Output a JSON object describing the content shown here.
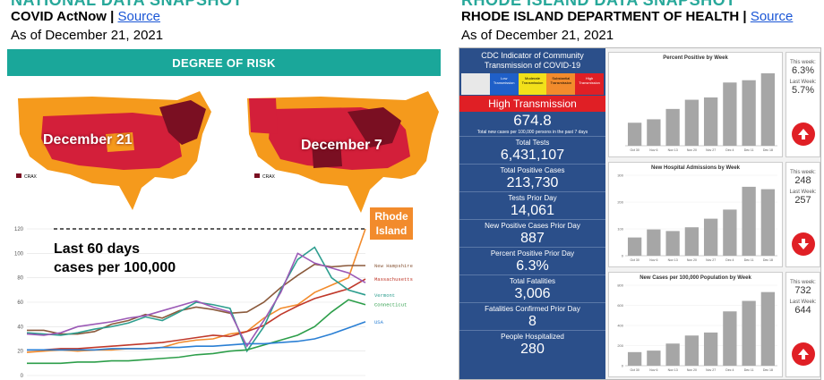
{
  "left": {
    "title": "NATIONAL DATA SNAPSHOT",
    "source_org": "COVID ActNow | ",
    "source_link": "Source",
    "as_of": "As of December 21, 2021",
    "risk_header": "DEGREE OF RISK",
    "map1_label": "December 21",
    "map2_label": "December 7",
    "legend_swatch_label": "CRAX",
    "chart_title_line1": "Last 60 days",
    "chart_title_line2": "cases per 100,000",
    "ri_badge": [
      "Rhode",
      "Island"
    ]
  },
  "right": {
    "title": "RHODE ISLAND DATA SNAPSHOT",
    "source_org": "RHODE ISLAND DEPARTMENT OF HEALTH | ",
    "source_link": "Source",
    "as_of": "As of December 21, 2021",
    "cdc_header_line1": "CDC Indicator of Community",
    "cdc_header_line2": "Transmission of COVID-19",
    "legend": [
      {
        "label": "Low Transmission",
        "color": "#1f5fc8"
      },
      {
        "label": "Moderate Transmission",
        "color": "#f2e01a"
      },
      {
        "label": "Substantial Transmission",
        "color": "#f28b2c"
      },
      {
        "label": "High Transmission",
        "color": "#e01f25"
      }
    ],
    "transmission_level": "High Transmission",
    "cases_per_100k": "674.8",
    "cases_note": "Total new cases per 100,000 persons in the past 7 days",
    "stats": [
      {
        "label": "Total Tests",
        "value": "6,431,107"
      },
      {
        "label": "Total Positive Cases",
        "value": "213,730"
      },
      {
        "label": "Tests Prior Day",
        "value": "14,061"
      },
      {
        "label": "New Positive Cases Prior Day",
        "value": "887"
      },
      {
        "label": "Percent Positive Prior Day",
        "value": "6.3%"
      },
      {
        "label": "Total Fatalities",
        "value": "3,006"
      },
      {
        "label": "Fatalities Confirmed Prior Day",
        "value": "8"
      },
      {
        "label": "People Hospitalized",
        "value": "280"
      }
    ],
    "side_this_week": "This week:",
    "side_last_week": "Last Week:",
    "panels": [
      {
        "this_week": "6.3%",
        "last_week": "5.7%",
        "arrow": "up"
      },
      {
        "this_week": "248",
        "last_week": "257",
        "arrow": "down"
      },
      {
        "this_week": "732",
        "last_week": "644",
        "arrow": "up"
      }
    ]
  },
  "chart_data": [
    {
      "type": "line",
      "title": "Last 60 days cases per 100,000",
      "ylim": [
        0,
        120
      ],
      "yticks": [
        0,
        20,
        40,
        60,
        80,
        100,
        120
      ],
      "x": [
        0,
        3,
        6,
        9,
        12,
        15,
        18,
        21,
        24,
        27,
        30,
        33,
        36,
        39,
        42,
        45,
        48,
        51,
        54,
        57,
        60
      ],
      "series": [
        {
          "name": "Rhode Island",
          "color": "#f28b2c",
          "values": [
            19,
            20,
            21,
            20,
            21,
            21,
            22,
            22,
            23,
            27,
            29,
            30,
            34,
            36,
            47,
            55,
            58,
            68,
            74,
            80,
            120
          ]
        },
        {
          "name": "New Hampshire",
          "color": "#8b5a3c",
          "values": [
            37,
            37,
            34,
            34,
            36,
            42,
            45,
            50,
            47,
            53,
            56,
            54,
            51,
            52,
            60,
            72,
            82,
            91,
            89,
            90,
            90
          ]
        },
        {
          "name": "Massachusetts",
          "color": "#c0392b",
          "values": [
            21,
            21,
            22,
            22,
            23,
            24,
            25,
            26,
            27,
            29,
            31,
            33,
            32,
            36,
            41,
            50,
            57,
            63,
            67,
            71,
            79
          ]
        },
        {
          "name": "Vermont",
          "color": "#2e9e8f",
          "values": [
            35,
            34,
            33,
            35,
            38,
            40,
            43,
            48,
            45,
            52,
            60,
            58,
            55,
            20,
            40,
            70,
            95,
            105,
            80,
            70,
            66
          ]
        },
        {
          "name": "Connecticut",
          "color": "#2d9e4a",
          "values": [
            10,
            10,
            10,
            11,
            11,
            12,
            12,
            13,
            14,
            15,
            17,
            18,
            20,
            21,
            25,
            29,
            33,
            40,
            52,
            62,
            58
          ]
        },
        {
          "name": "USA",
          "color": "#2a7fd4",
          "values": [
            21,
            21,
            21,
            21,
            21,
            22,
            22,
            22,
            23,
            23,
            24,
            24,
            25,
            26,
            26,
            27,
            28,
            30,
            34,
            39,
            44
          ]
        },
        {
          "name": "",
          "color": "#9b59b6",
          "values": [
            34,
            33,
            35,
            40,
            42,
            44,
            47,
            49,
            53,
            57,
            61,
            56,
            52,
            24,
            45,
            68,
            100,
            92,
            88,
            84,
            76
          ]
        }
      ]
    },
    {
      "type": "bar",
      "title": "Percent Positive by Week",
      "categories": [
        "Oct 30",
        "Nov 6",
        "Nov 13",
        "Nov 20",
        "Nov 27",
        "Dec 4",
        "Dec 11",
        "Dec 18"
      ],
      "values": [
        2.0,
        2.3,
        3.2,
        4.0,
        4.2,
        5.5,
        5.7,
        6.3
      ],
      "ylim": [
        0,
        7
      ]
    },
    {
      "type": "bar",
      "title": "New Hospital Admissions by Week",
      "categories": [
        "Oct 30",
        "Nov 6",
        "Nov 13",
        "Nov 20",
        "Nov 27",
        "Dec 4",
        "Dec 11",
        "Dec 18"
      ],
      "values": [
        68,
        98,
        92,
        106,
        138,
        172,
        257,
        248
      ],
      "ylim": [
        0,
        300
      ],
      "yticks": [
        0,
        100,
        200,
        300
      ]
    },
    {
      "type": "bar",
      "title": "New Cases per 100,000 Population by Week",
      "categories": [
        "Oct 30",
        "Nov 6",
        "Nov 13",
        "Nov 20",
        "Nov 27",
        "Dec 4",
        "Dec 11",
        "Dec 18"
      ],
      "values": [
        135,
        150,
        220,
        300,
        330,
        540,
        644,
        732
      ],
      "ylim": [
        0,
        800
      ],
      "yticks": [
        0,
        200,
        400,
        600,
        800
      ]
    }
  ]
}
